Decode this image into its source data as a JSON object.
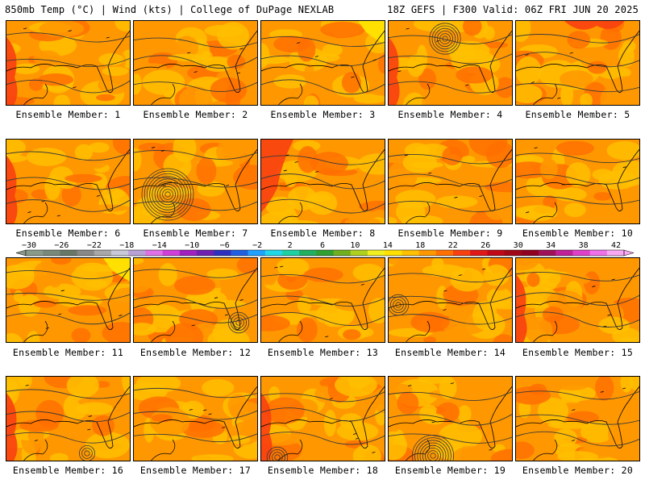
{
  "header": {
    "left": "850mb Temp (°C) | Wind (kts) | College of DuPage NEXLAB",
    "right": "18Z GEFS | F300 Valid: 06Z FRI JUN 20 2025"
  },
  "colorbar": {
    "labels": [
      "−30",
      "−26",
      "−22",
      "−18",
      "−14",
      "−10",
      "−6",
      "−2",
      "2",
      "6",
      "10",
      "14",
      "18",
      "22",
      "26",
      "30",
      "34",
      "38",
      "42"
    ],
    "colors": [
      "#8a9a8a",
      "#78887a",
      "#687868",
      "#888888",
      "#a8a8a8",
      "#c8c8d8",
      "#b8a0d8",
      "#e070e8",
      "#d040d8",
      "#a020c0",
      "#7020b0",
      "#3030c0",
      "#2060e0",
      "#20a0ff",
      "#20d8e8",
      "#20d0a0",
      "#20b060",
      "#30a030",
      "#70b020",
      "#b0d020",
      "#f0f020",
      "#ffe000",
      "#ffc000",
      "#ff9800",
      "#ff7000",
      "#f84010",
      "#e01818",
      "#c00818",
      "#a00818",
      "#900020",
      "#a01058",
      "#c02098",
      "#e040c8",
      "#f070e8",
      "#f8a8f0"
    ]
  },
  "members": [
    {
      "label": "Ensemble Member: 1"
    },
    {
      "label": "Ensemble Member: 2"
    },
    {
      "label": "Ensemble Member: 3"
    },
    {
      "label": "Ensemble Member: 4"
    },
    {
      "label": "Ensemble Member: 5"
    },
    {
      "label": "Ensemble Member: 6"
    },
    {
      "label": "Ensemble Member: 7"
    },
    {
      "label": "Ensemble Member: 8"
    },
    {
      "label": "Ensemble Member: 9"
    },
    {
      "label": "Ensemble Member: 10"
    },
    {
      "label": "Ensemble Member: 11"
    },
    {
      "label": "Ensemble Member: 12"
    },
    {
      "label": "Ensemble Member: 13"
    },
    {
      "label": "Ensemble Member: 14"
    },
    {
      "label": "Ensemble Member: 15"
    },
    {
      "label": "Ensemble Member: 16"
    },
    {
      "label": "Ensemble Member: 17"
    },
    {
      "label": "Ensemble Member: 18"
    },
    {
      "label": "Ensemble Member: 19"
    },
    {
      "label": "Ensemble Member: 20"
    }
  ],
  "colors": {
    "warm_low": "#ffc000",
    "warm_mid": "#ff9800",
    "warm_high": "#ff7000",
    "hot": "#f84010",
    "cool": "#ffe000",
    "contour": "#3a3a3a"
  }
}
